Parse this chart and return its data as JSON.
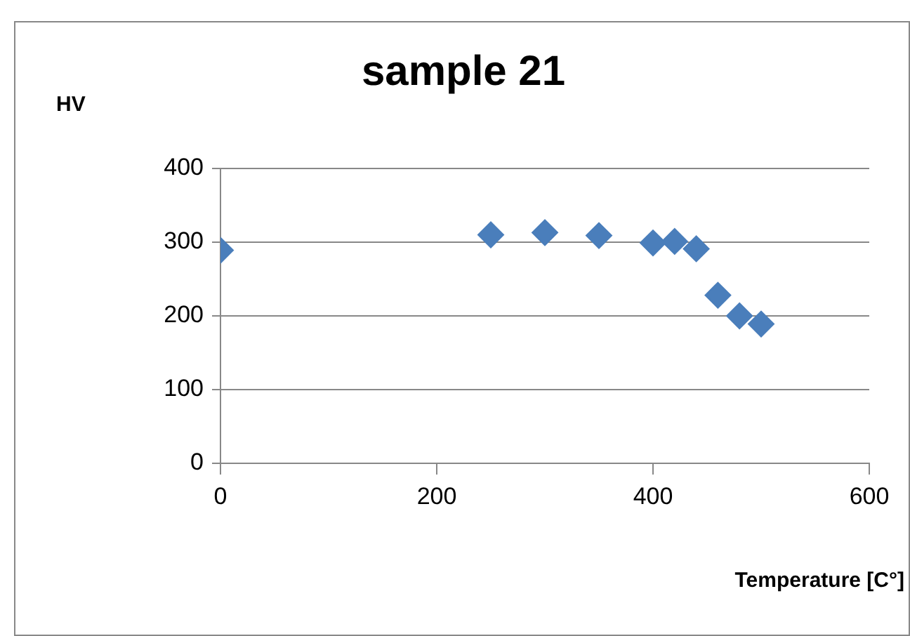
{
  "chart_data": {
    "type": "scatter",
    "title": "sample 21",
    "xlabel": "Temperature [C°]",
    "ylabel": "HV",
    "x": [
      0,
      250,
      300,
      350,
      400,
      420,
      440,
      460,
      480,
      500
    ],
    "series": [
      {
        "color": "#4a7ebb",
        "values": [
          289,
          310,
          313,
          309,
          299,
          301,
          291,
          228,
          200,
          189
        ]
      }
    ],
    "xlim": [
      0,
      600
    ],
    "xticks": [
      0,
      200,
      400,
      600
    ],
    "ylim": [
      0,
      400
    ],
    "yticks": [
      0,
      100,
      200,
      300,
      400
    ],
    "grid": "y",
    "legend": false,
    "marker": "diamond"
  }
}
